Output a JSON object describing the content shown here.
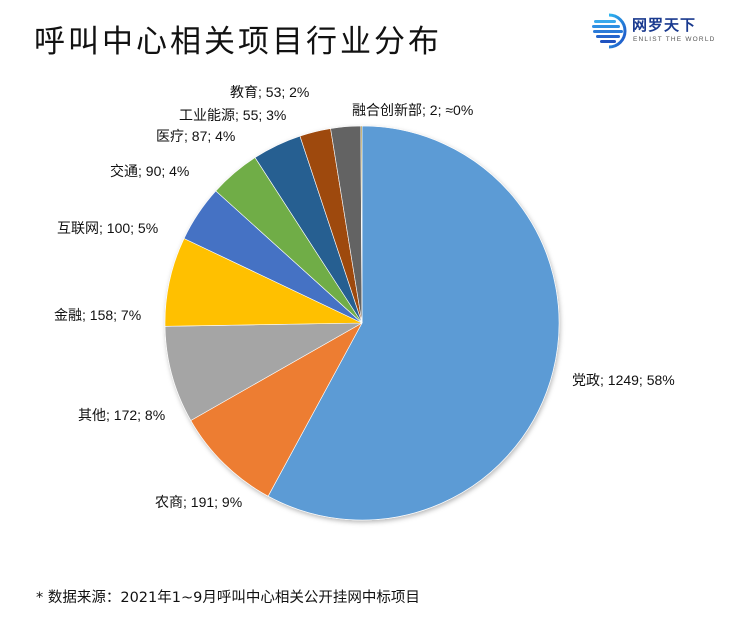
{
  "title": "呼叫中心相关项目行业分布",
  "logo": {
    "name": "网罗天下",
    "subtitle": "ENLIST THE WORLD",
    "icon": "globe-stripes-icon"
  },
  "footnote": "* 数据来源：2021年1~9月呼叫中心相关公开挂网中标项目",
  "labels": [
    "党政; 1249; 58%",
    "农商; 191; 9%",
    "其他; 172; 8%",
    "金融; 158; 7%",
    "互联网; 100; 5%",
    "交通; 90; 4%",
    "医疗; 87; 4%",
    "工业能源; 55; 3%",
    "教育; 53; 2%",
    "融合创新部; 2; ≈0%"
  ],
  "chart_data": {
    "type": "pie",
    "title": "呼叫中心相关项目行业分布",
    "categories": [
      "党政",
      "农商",
      "其他",
      "金融",
      "互联网",
      "交通",
      "医疗",
      "工业能源",
      "教育",
      "融合创新部"
    ],
    "values": [
      1249,
      191,
      172,
      158,
      100,
      90,
      87,
      55,
      53,
      2
    ],
    "percent_labels": [
      "58%",
      "9%",
      "8%",
      "7%",
      "5%",
      "4%",
      "4%",
      "3%",
      "2%",
      "≈0%"
    ],
    "colors": [
      "#5b9bd5",
      "#ed7d31",
      "#a5a5a5",
      "#ffc000",
      "#4472c4",
      "#70ad47",
      "#255e91",
      "#9e480e",
      "#636363",
      "#997300"
    ],
    "start_angle_deg": 0,
    "direction": "clockwise",
    "data_label_format": "name; value; percent",
    "legend": "none",
    "source_note": "* 数据来源：2021年1~9月呼叫中心相关公开挂网中标项目"
  }
}
